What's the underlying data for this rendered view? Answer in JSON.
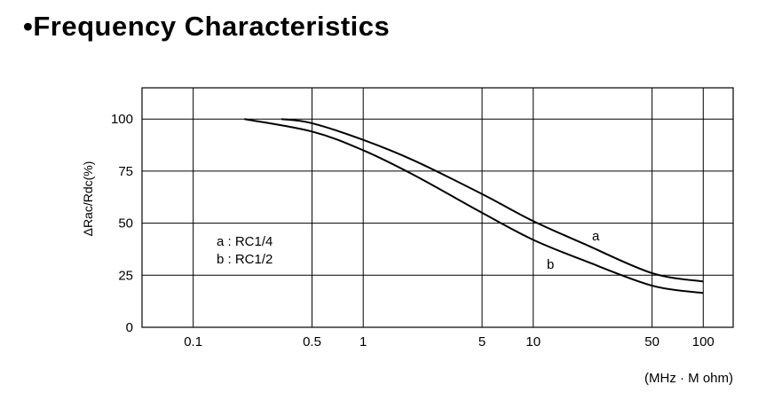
{
  "heading": "•Frequency Characteristics",
  "chart_data": {
    "type": "line",
    "title": "",
    "ylabel": "ΔRac/Rdc(%)",
    "xlabel": "(MHz · M ohm)",
    "x_scale": "log",
    "xlim": [
      0.05,
      150
    ],
    "ylim": [
      0,
      115
    ],
    "grid": true,
    "x_ticks": [
      0.1,
      0.5,
      1,
      5,
      10,
      50,
      100
    ],
    "x_tick_labels": [
      "0.1",
      "0.5",
      "1",
      "5",
      "10",
      "50",
      "100"
    ],
    "y_ticks": [
      0,
      25,
      50,
      75,
      100
    ],
    "y_tick_labels": [
      "0",
      "25",
      "50",
      "75",
      "100"
    ],
    "legend": [
      "a : RC1/4",
      "b : RC1/2"
    ],
    "series": [
      {
        "name": "a",
        "x": [
          0.33,
          0.5,
          1,
          2,
          5,
          10,
          20,
          50,
          100
        ],
        "y": [
          100,
          98,
          90,
          80,
          64,
          51,
          40,
          26,
          22
        ]
      },
      {
        "name": "b",
        "x": [
          0.2,
          0.5,
          1,
          2,
          5,
          10,
          20,
          50,
          100
        ],
        "y": [
          100,
          94,
          85,
          73,
          55,
          42,
          32,
          20,
          16.5
        ]
      }
    ]
  }
}
